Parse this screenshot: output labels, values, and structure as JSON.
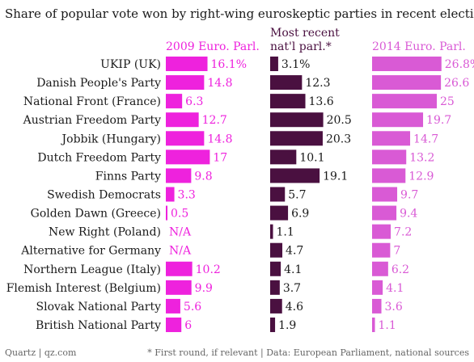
{
  "chart_data": {
    "type": "bar",
    "title": "Share of popular vote won by right-wing euroskeptic parties in recent elections",
    "categories": [
      "UKIP (UK)",
      "Danish People's Party",
      "National Front (France)",
      "Austrian Freedom Party",
      "Jobbik (Hungary)",
      "Dutch Freedom Party",
      "Finns Party",
      "Swedish Democrats",
      "Golden Dawn (Greece)",
      "New Right (Poland)",
      "Alternative for Germany",
      "Northern League (Italy)",
      "Flemish Interest (Belgium)",
      "Slovak National Party",
      "British National Party"
    ],
    "series": [
      {
        "name": "2009 Euro. Parl.",
        "color": "#ee22dd",
        "values": [
          16.1,
          14.8,
          6.3,
          12.7,
          14.8,
          17,
          9.8,
          3.3,
          0.5,
          null,
          null,
          10.2,
          9.9,
          5.6,
          6
        ],
        "labels": [
          "16.1%",
          "14.8",
          "6.3",
          "12.7",
          "14.8",
          "17",
          "9.8",
          "3.3",
          "0.5",
          "N/A",
          "N/A",
          "10.2",
          "9.9",
          "5.6",
          "6"
        ]
      },
      {
        "name": "Most recent nat'l parl.*",
        "header_lines": [
          "Most recent",
          "nat'l parl.*"
        ],
        "color": "#4a1040",
        "values": [
          3.1,
          12.3,
          13.6,
          20.5,
          20.3,
          10.1,
          19.1,
          5.7,
          6.9,
          1.1,
          4.7,
          4.1,
          3.7,
          4.6,
          1.9
        ],
        "labels": [
          "3.1%",
          "12.3",
          "13.6",
          "20.5",
          "20.3",
          "10.1",
          "19.1",
          "5.7",
          "6.9",
          "1.1",
          "4.7",
          "4.1",
          "3.7",
          "4.6",
          "1.9"
        ]
      },
      {
        "name": "2014 Euro. Parl.",
        "color": "#d95ad5",
        "values": [
          26.8,
          26.6,
          25,
          19.7,
          14.7,
          13.2,
          12.9,
          9.7,
          9.4,
          7.2,
          7,
          6.2,
          4.1,
          3.6,
          1.1
        ],
        "labels": [
          "26.8%",
          "26.6",
          "25",
          "19.7",
          "14.7",
          "13.2",
          "12.9",
          "9.7",
          "9.4",
          "7.2",
          "7",
          "6.2",
          "4.1",
          "3.6",
          "1.1"
        ]
      }
    ],
    "unit": "%"
  },
  "footer": {
    "left": "Quartz | qz.com",
    "right": "* First round, if relevant | Data: European Parliament, national sources"
  }
}
